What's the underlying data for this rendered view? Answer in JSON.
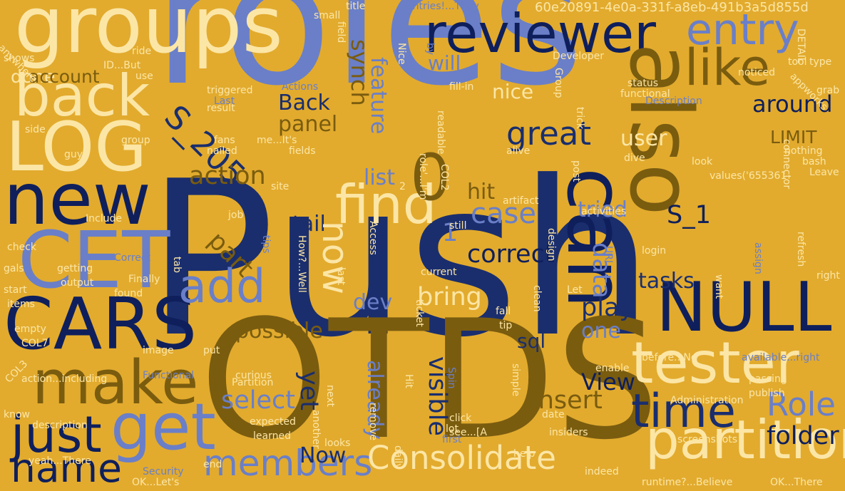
{
  "colors": {
    "background": "#E2AB2E",
    "navy": "#1A2E6E",
    "dark_navy": "#0F1F5C",
    "slate_blue": "#6A7FC8",
    "olive_brown": "#7A5C0F",
    "cream": "#FCE6A6"
  },
  "words": [
    {
      "text": "roles",
      "color": "slate_blue"
    },
    {
      "text": "Push",
      "color": "navy"
    },
    {
      "text": "OTDS",
      "color": "olive_brown"
    },
    {
      "text": "groups",
      "color": "cream"
    },
    {
      "text": "reviewer",
      "color": "dark_navy"
    },
    {
      "text": "entry",
      "color": "slate_blue"
    },
    {
      "text": "back",
      "color": "cream"
    },
    {
      "text": "LOG",
      "color": "cream"
    },
    {
      "text": "new",
      "color": "dark_navy"
    },
    {
      "text": "CET",
      "color": "slate_blue"
    },
    {
      "text": "CARS",
      "color": "dark_navy"
    },
    {
      "text": "make",
      "color": "olive_brown"
    },
    {
      "text": "just",
      "color": "dark_navy"
    },
    {
      "text": "get",
      "color": "slate_blue"
    },
    {
      "text": "name",
      "color": "dark_navy"
    },
    {
      "text": "members",
      "color": "slate_blue"
    },
    {
      "text": "Consolidate",
      "color": "cream"
    },
    {
      "text": "partition",
      "color": "cream"
    },
    {
      "text": "tester",
      "color": "cream"
    },
    {
      "text": "time",
      "color": "navy"
    },
    {
      "text": "NULL",
      "color": "dark_navy"
    },
    {
      "text": "can",
      "color": "dark_navy"
    },
    {
      "text": "also",
      "color": "olive_brown"
    },
    {
      "text": "like",
      "color": "olive_brown"
    },
    {
      "text": "find",
      "color": "cream"
    },
    {
      "text": "add",
      "color": "slate_blue"
    },
    {
      "text": "great",
      "color": "navy"
    },
    {
      "text": "Role",
      "color": "slate_blue"
    },
    {
      "text": "folder",
      "color": "dark_navy"
    },
    {
      "text": "0",
      "color": "olive_brown"
    },
    {
      "text": "S_1",
      "color": "dark_navy"
    },
    {
      "text": "S_205",
      "color": "navy"
    },
    {
      "text": "done",
      "color": "cream"
    },
    {
      "text": "account",
      "color": "olive_brown"
    },
    {
      "text": "synch",
      "color": "olive_brown"
    },
    {
      "text": "will",
      "color": "slate_blue"
    },
    {
      "text": "nice",
      "color": "cream"
    },
    {
      "text": "around",
      "color": "dark_navy"
    },
    {
      "text": "Back",
      "color": "navy"
    },
    {
      "text": "panel",
      "color": "olive_brown"
    },
    {
      "text": "feature",
      "color": "slate_blue"
    },
    {
      "text": "user",
      "color": "cream"
    },
    {
      "text": "LIMIT",
      "color": "olive_brown"
    },
    {
      "text": "action",
      "color": "olive_brown"
    },
    {
      "text": "list",
      "color": "slate_blue"
    },
    {
      "text": "case",
      "color": "slate_blue"
    },
    {
      "text": "hit",
      "color": "olive_brown"
    },
    {
      "text": "tried",
      "color": "slate_blue"
    },
    {
      "text": "tail",
      "color": "navy"
    },
    {
      "text": "now",
      "color": "cream"
    },
    {
      "text": "part",
      "color": "olive_brown"
    },
    {
      "text": "correct",
      "color": "dark_navy"
    },
    {
      "text": "data",
      "color": "slate_blue"
    },
    {
      "text": "tasks",
      "color": "navy"
    },
    {
      "text": "1",
      "color": "slate_blue"
    },
    {
      "text": "dev",
      "color": "slate_blue"
    },
    {
      "text": "bring",
      "color": "cream"
    },
    {
      "text": "play",
      "color": "navy"
    },
    {
      "text": "possible",
      "color": "olive_brown"
    },
    {
      "text": "one",
      "color": "slate_blue"
    },
    {
      "text": "sql",
      "color": "navy"
    },
    {
      "text": "yet",
      "color": "navy"
    },
    {
      "text": "already",
      "color": "slate_blue"
    },
    {
      "text": "visible",
      "color": "navy"
    },
    {
      "text": "View",
      "color": "dark_navy"
    },
    {
      "text": "select",
      "color": "slate_blue"
    },
    {
      "text": "insert",
      "color": "olive_brown"
    },
    {
      "text": "Now",
      "color": "navy"
    },
    {
      "text": "60e20891-4e0a-331f-a8eb-491b3a5d855d",
      "color": "cream"
    },
    {
      "text": "entries!...They",
      "color": "slate_blue"
    },
    {
      "text": "title",
      "color": "cream"
    },
    {
      "text": "small",
      "color": "cream"
    },
    {
      "text": "DETAIL",
      "color": "cream"
    },
    {
      "text": "anywhere",
      "color": "cream"
    },
    {
      "text": "shows",
      "color": "cream"
    },
    {
      "text": "field",
      "color": "cream"
    },
    {
      "text": "Nice",
      "color": "cream"
    },
    {
      "text": "by",
      "color": "slate_blue"
    },
    {
      "text": "Developer",
      "color": "cream"
    },
    {
      "text": "noticed",
      "color": "cream"
    },
    {
      "text": "type",
      "color": "cream"
    },
    {
      "text": "tool",
      "color": "cream"
    },
    {
      "text": "ride",
      "color": "cream"
    },
    {
      "text": "ID...But",
      "color": "cream"
    },
    {
      "text": "use",
      "color": "cream"
    },
    {
      "text": "Group",
      "color": "cream"
    },
    {
      "text": "status",
      "color": "cream"
    },
    {
      "text": "functional",
      "color": "cream"
    },
    {
      "text": "appworks",
      "color": "cream"
    },
    {
      "text": "grab",
      "color": "cream"
    },
    {
      "text": "triggered",
      "color": "cream"
    },
    {
      "text": "Actions",
      "color": "slate_blue"
    },
    {
      "text": "fill-in",
      "color": "cream"
    },
    {
      "text": "Description",
      "color": "slate_blue"
    },
    {
      "text": "result",
      "color": "cream"
    },
    {
      "text": "Last",
      "color": "slate_blue"
    },
    {
      "text": "me...It's",
      "color": "cream"
    },
    {
      "text": "readable",
      "color": "cream"
    },
    {
      "text": "trick",
      "color": "cream"
    },
    {
      "text": "connector",
      "color": "cream"
    },
    {
      "text": "side",
      "color": "cream"
    },
    {
      "text": "group",
      "color": "cream"
    },
    {
      "text": "fans",
      "color": "cream"
    },
    {
      "text": "nailed",
      "color": "cream"
    },
    {
      "text": "fields",
      "color": "cream"
    },
    {
      "text": "role'...I'm",
      "color": "cream"
    },
    {
      "text": "alive",
      "color": "cream"
    },
    {
      "text": "dive",
      "color": "cream"
    },
    {
      "text": "nothing",
      "color": "cream"
    },
    {
      "text": "bash",
      "color": "cream"
    },
    {
      "text": "guy",
      "color": "cream"
    },
    {
      "text": "post",
      "color": "cream"
    },
    {
      "text": "look",
      "color": "cream"
    },
    {
      "text": "Leave",
      "color": "cream"
    },
    {
      "text": "values('655361",
      "color": "cream"
    },
    {
      "text": "site",
      "color": "cream"
    },
    {
      "text": "2",
      "color": "cream"
    },
    {
      "text": "artifact",
      "color": "cream"
    },
    {
      "text": "COL2",
      "color": "cream"
    },
    {
      "text": "Include",
      "color": "cream"
    },
    {
      "text": "job",
      "color": "cream"
    },
    {
      "text": "still",
      "color": "cream"
    },
    {
      "text": "activities",
      "color": "cream"
    },
    {
      "text": "refresh",
      "color": "cream"
    },
    {
      "text": "check",
      "color": "cream"
    },
    {
      "text": "tips",
      "color": "slate_blue"
    },
    {
      "text": "How?...Well",
      "color": "cream"
    },
    {
      "text": "Access",
      "color": "cream"
    },
    {
      "text": "design",
      "color": "cream"
    },
    {
      "text": "login",
      "color": "cream"
    },
    {
      "text": "assign",
      "color": "slate_blue"
    },
    {
      "text": "gals",
      "color": "cream"
    },
    {
      "text": "getting",
      "color": "cream"
    },
    {
      "text": "Correct",
      "color": "slate_blue"
    },
    {
      "text": "tab",
      "color": "cream"
    },
    {
      "text": "last",
      "color": "cream"
    },
    {
      "text": "current",
      "color": "cream"
    },
    {
      "text": "URL",
      "color": "slate_blue"
    },
    {
      "text": "want",
      "color": "cream"
    },
    {
      "text": "right",
      "color": "cream"
    },
    {
      "text": "start",
      "color": "cream"
    },
    {
      "text": "output",
      "color": "cream"
    },
    {
      "text": "Finally",
      "color": "cream"
    },
    {
      "text": "Let",
      "color": "cream"
    },
    {
      "text": "items",
      "color": "cream"
    },
    {
      "text": "found",
      "color": "cream"
    },
    {
      "text": "clean",
      "color": "cream"
    },
    {
      "text": "empty",
      "color": "cream"
    },
    {
      "text": "ticket",
      "color": "cream"
    },
    {
      "text": "fall",
      "color": "cream"
    },
    {
      "text": "COL7",
      "color": "cream"
    },
    {
      "text": "image",
      "color": "cream"
    },
    {
      "text": "put",
      "color": "cream"
    },
    {
      "text": "tip",
      "color": "cream"
    },
    {
      "text": "before...No",
      "color": "cream"
    },
    {
      "text": "available...right",
      "color": "slate_blue"
    },
    {
      "text": "action...including",
      "color": "cream"
    },
    {
      "text": "Functional",
      "color": "slate_blue"
    },
    {
      "text": "curious",
      "color": "cream"
    },
    {
      "text": "Spin",
      "color": "slate_blue"
    },
    {
      "text": "enable",
      "color": "cream"
    },
    {
      "text": "COL3",
      "color": "cream"
    },
    {
      "text": "Partition",
      "color": "cream"
    },
    {
      "text": "Hit",
      "color": "cream"
    },
    {
      "text": "simple",
      "color": "cream"
    },
    {
      "text": "passing",
      "color": "cream"
    },
    {
      "text": "know",
      "color": "cream"
    },
    {
      "text": "next",
      "color": "cream"
    },
    {
      "text": "Administration",
      "color": "cream"
    },
    {
      "text": "publish",
      "color": "cream"
    },
    {
      "text": "expected",
      "color": "cream"
    },
    {
      "text": "remove",
      "color": "cream"
    },
    {
      "text": "click",
      "color": "cream"
    },
    {
      "text": "date",
      "color": "cream"
    },
    {
      "text": "description",
      "color": "cream"
    },
    {
      "text": "learned",
      "color": "cream"
    },
    {
      "text": "another",
      "color": "cream"
    },
    {
      "text": "lot",
      "color": "cream"
    },
    {
      "text": "see...[A",
      "color": "cream"
    },
    {
      "text": "insiders",
      "color": "cream"
    },
    {
      "text": "looks",
      "color": "cream"
    },
    {
      "text": "first",
      "color": "slate_blue"
    },
    {
      "text": "screenshots",
      "color": "cream"
    },
    {
      "text": "yeah...There",
      "color": "cream"
    },
    {
      "text": "daily",
      "color": "cream"
    },
    {
      "text": "help",
      "color": "cream"
    },
    {
      "text": "Security",
      "color": "slate_blue"
    },
    {
      "text": "end",
      "color": "cream"
    },
    {
      "text": "indeed",
      "color": "cream"
    },
    {
      "text": "OK...Let's",
      "color": "cream"
    },
    {
      "text": "runtime?...Believe",
      "color": "cream"
    },
    {
      "text": "OK...There",
      "color": "cream"
    }
  ]
}
